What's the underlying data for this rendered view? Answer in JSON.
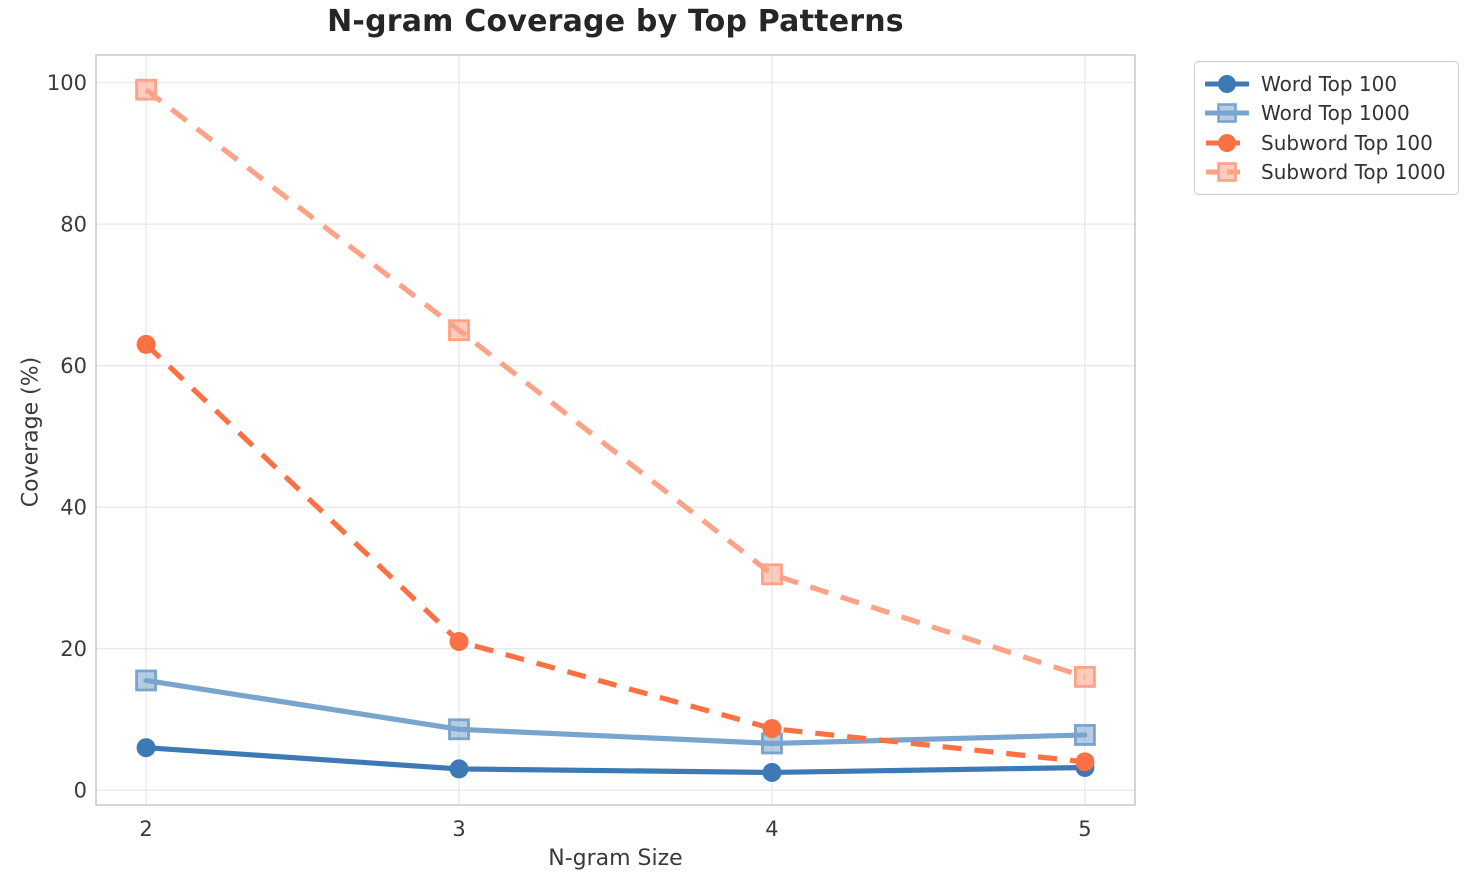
{
  "chart_data": {
    "type": "line",
    "title": "N-gram Coverage by Top Patterns",
    "xlabel": "N-gram Size",
    "ylabel": "Coverage (%)",
    "x": [
      2,
      3,
      4,
      5
    ],
    "xticks": [
      "2",
      "3",
      "4",
      "5"
    ],
    "yticks": [
      "0",
      "20",
      "40",
      "60",
      "80",
      "100"
    ],
    "ytick_values": [
      0,
      20,
      40,
      60,
      80,
      100
    ],
    "xlim": [
      1.84,
      5.16
    ],
    "ylim": [
      -2.1,
      103.9
    ],
    "grid": true,
    "legend_position": "outside-upper-right",
    "series": [
      {
        "name": "Word Top 100",
        "marker": "circle",
        "line": "solid",
        "color": "#3d7ab5",
        "values": [
          6.0,
          3.0,
          2.5,
          3.2
        ]
      },
      {
        "name": "Word Top 1000",
        "marker": "square",
        "line": "solid",
        "color": "#79a4cd",
        "values": [
          15.5,
          8.6,
          6.6,
          7.8
        ]
      },
      {
        "name": "Subword Top 100",
        "marker": "circle",
        "line": "dashed",
        "color": "#fb7144",
        "values": [
          63.0,
          21.0,
          8.7,
          4.0
        ]
      },
      {
        "name": "Subword Top 1000",
        "marker": "square",
        "line": "dashed",
        "color": "#fba287",
        "values": [
          99.0,
          65.0,
          30.5,
          16.0
        ]
      }
    ],
    "colors": {
      "grid": "#e9e9e9",
      "spine": "#cccccc",
      "tick_label": "#3a3a3a",
      "title": "#262626"
    }
  }
}
